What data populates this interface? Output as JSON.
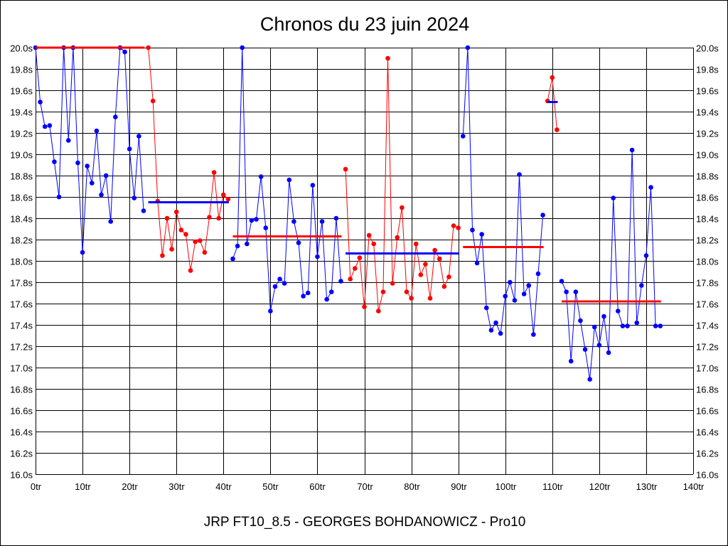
{
  "chart_data": {
    "type": "line",
    "title": "Chronos du 23 juin 2024",
    "subtitle": "JRP FT10_8.5 - GEORGES BOHDANOWICZ - Pro10",
    "xlabel": "",
    "ylabel": "",
    "xlim": [
      0,
      140
    ],
    "ylim": [
      16.0,
      20.0
    ],
    "x_ticks": [
      "0tr",
      "10tr",
      "20tr",
      "30tr",
      "40tr",
      "50tr",
      "60tr",
      "70tr",
      "80tr",
      "90tr",
      "100tr",
      "110tr",
      "120tr",
      "130tr",
      "140tr"
    ],
    "y_ticks": [
      "16.0s",
      "16.2s",
      "16.4s",
      "16.6s",
      "16.8s",
      "17.0s",
      "17.2s",
      "17.4s",
      "17.6s",
      "17.8s",
      "18.0s",
      "18.2s",
      "18.4s",
      "18.6s",
      "18.8s",
      "19.0s",
      "19.2s",
      "19.4s",
      "19.6s",
      "19.8s",
      "20.0s"
    ],
    "grid": true,
    "colors": {
      "blue": "#0000ff",
      "red": "#ff0000"
    },
    "segments": [
      {
        "color": "blue",
        "start_lap": 0,
        "values": [
          20.0,
          19.49,
          19.26,
          19.27,
          18.93,
          18.6,
          20.0,
          19.13,
          20.0,
          18.92,
          18.08,
          18.89,
          18.73,
          19.22,
          18.62,
          18.8,
          18.37,
          19.35,
          20.0,
          19.96,
          19.05,
          18.59,
          19.17,
          18.47
        ],
        "average": 20.0
      },
      {
        "color": "red",
        "start_lap": 24,
        "values": [
          20.0,
          19.5,
          18.56,
          18.05,
          18.4,
          18.11,
          18.46,
          18.29,
          18.25,
          17.91,
          18.18,
          18.19,
          18.08,
          18.41,
          18.83,
          18.4,
          18.62,
          18.58
        ],
        "average": 18.55
      },
      {
        "color": "blue",
        "start_lap": 42,
        "values": [
          18.02,
          18.14,
          20.0,
          18.16,
          18.38,
          18.39,
          18.79,
          18.31,
          17.53,
          17.76,
          17.83,
          17.79,
          18.76,
          18.37,
          18.17,
          17.67,
          17.7,
          18.71,
          18.04,
          18.37,
          17.64,
          17.71,
          18.4,
          17.81
        ],
        "average": 18.23
      },
      {
        "color": "red",
        "start_lap": 66,
        "values": [
          18.86,
          17.83,
          17.93,
          18.03,
          17.57,
          18.24,
          18.16,
          17.53,
          17.71,
          19.9,
          17.79,
          18.22,
          18.5,
          17.71,
          17.65,
          18.16,
          17.87,
          17.97,
          17.65,
          18.1,
          18.02,
          17.76,
          17.85,
          18.33,
          18.31
        ],
        "average": 18.07
      },
      {
        "color": "blue",
        "start_lap": 91,
        "values": [
          19.17,
          20.0,
          18.29,
          17.98,
          18.25,
          17.56,
          17.35,
          17.42,
          17.32,
          17.67,
          17.8,
          17.63,
          18.81,
          17.69,
          17.77,
          17.31,
          17.88,
          18.43
        ],
        "average": 18.13
      },
      {
        "color": "red",
        "start_lap": 109,
        "values": [
          19.5,
          19.72,
          19.23
        ],
        "average": 19.49
      },
      {
        "color": "blue",
        "start_lap": 112,
        "values": [
          17.81,
          17.71,
          17.06,
          17.71,
          17.44,
          17.17,
          16.89,
          17.38,
          17.21,
          17.48,
          17.14,
          18.59,
          17.53,
          17.39,
          17.39,
          19.04,
          17.42,
          17.77,
          18.05,
          18.69,
          17.39,
          17.39
        ],
        "average": 17.62
      }
    ]
  }
}
